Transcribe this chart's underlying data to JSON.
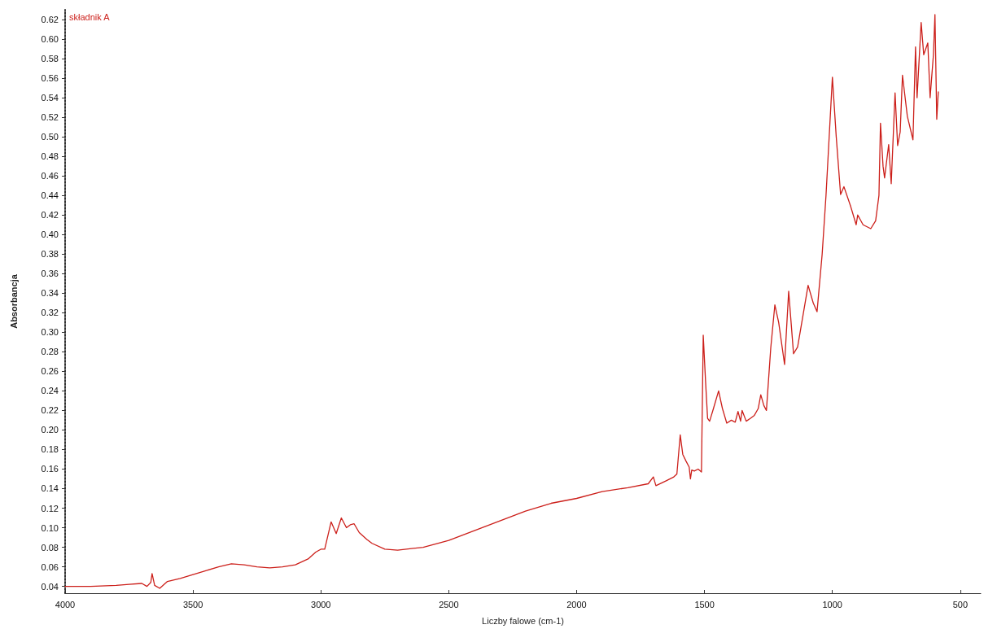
{
  "chart_data": {
    "type": "line",
    "xlabel": "Liczby falowe (cm-1)",
    "ylabel": "Absorbancja",
    "legend": "top left",
    "marker": "none",
    "line_style": "solid",
    "xlim": [
      4000,
      420
    ],
    "xticks": [
      4000,
      3500,
      3000,
      2500,
      2000,
      1500,
      1000,
      500
    ],
    "ylim": [
      0.033,
      0.63
    ],
    "yticks": [
      0.04,
      0.06,
      0.08,
      {
        "value": 0.1,
        "label": "0.10"
      },
      0.12,
      0.14,
      0.16,
      0.18,
      {
        "value": 0.2,
        "label": "0.20"
      },
      0.22,
      0.24,
      0.26,
      0.28,
      {
        "value": 0.3,
        "label": "0.30"
      },
      0.32,
      0.34,
      0.36,
      0.38,
      {
        "value": 0.4,
        "label": "0.40"
      },
      0.42,
      0.44,
      0.46,
      0.48,
      {
        "value": 0.5,
        "label": "0.50"
      },
      0.52,
      0.54,
      0.56,
      0.58,
      {
        "value": 0.6,
        "label": "0.60"
      },
      0.62
    ],
    "series": [
      {
        "name": "składnik A",
        "color": "#cc1f1a",
        "x": [
          4000,
          3900,
          3800,
          3750,
          3700,
          3680,
          3665,
          3660,
          3650,
          3630,
          3600,
          3550,
          3500,
          3450,
          3400,
          3350,
          3300,
          3250,
          3200,
          3150,
          3100,
          3050,
          3020,
          3000,
          2985,
          2960,
          2940,
          2920,
          2900,
          2885,
          2870,
          2850,
          2820,
          2800,
          2750,
          2700,
          2600,
          2500,
          2400,
          2300,
          2200,
          2100,
          2000,
          1900,
          1800,
          1720,
          1700,
          1690,
          1650,
          1620,
          1608,
          1595,
          1585,
          1572,
          1560,
          1555,
          1550,
          1540,
          1525,
          1512,
          1505,
          1496,
          1488,
          1480,
          1465,
          1445,
          1430,
          1413,
          1395,
          1380,
          1369,
          1359,
          1353,
          1337,
          1320,
          1305,
          1290,
          1280,
          1268,
          1258,
          1241,
          1225,
          1210,
          1187,
          1171,
          1152,
          1136,
          1110,
          1095,
          1075,
          1060,
          1040,
          1025,
          1000,
          985,
          968,
          955,
          930,
          907,
          901,
          880,
          850,
          831,
          818,
          812,
          802,
          796,
          780,
          770,
          755,
          745,
          735,
          726,
          707,
          685,
          675,
          669,
          653,
          643,
          627,
          618,
          605,
          599,
          592,
          586
        ],
        "values": [
          0.04,
          0.04,
          0.041,
          0.042,
          0.043,
          0.04,
          0.044,
          0.053,
          0.041,
          0.038,
          0.045,
          0.048,
          0.052,
          0.056,
          0.06,
          0.063,
          0.062,
          0.06,
          0.059,
          0.06,
          0.062,
          0.068,
          0.075,
          0.078,
          0.078,
          0.106,
          0.094,
          0.11,
          0.1,
          0.103,
          0.104,
          0.095,
          0.088,
          0.084,
          0.078,
          0.077,
          0.08,
          0.087,
          0.097,
          0.107,
          0.117,
          0.125,
          0.13,
          0.137,
          0.141,
          0.145,
          0.152,
          0.143,
          0.148,
          0.152,
          0.155,
          0.195,
          0.175,
          0.168,
          0.162,
          0.15,
          0.159,
          0.158,
          0.16,
          0.157,
          0.297,
          0.25,
          0.212,
          0.209,
          0.222,
          0.24,
          0.222,
          0.207,
          0.21,
          0.208,
          0.219,
          0.209,
          0.22,
          0.209,
          0.212,
          0.215,
          0.222,
          0.236,
          0.225,
          0.22,
          0.284,
          0.328,
          0.31,
          0.267,
          0.342,
          0.278,
          0.285,
          0.325,
          0.348,
          0.33,
          0.321,
          0.38,
          0.44,
          0.561,
          0.5,
          0.441,
          0.449,
          0.43,
          0.41,
          0.42,
          0.41,
          0.406,
          0.414,
          0.44,
          0.514,
          0.47,
          0.458,
          0.492,
          0.452,
          0.545,
          0.491,
          0.505,
          0.563,
          0.521,
          0.497,
          0.592,
          0.54,
          0.617,
          0.584,
          0.596,
          0.54,
          0.584,
          0.625,
          0.518,
          0.546
        ]
      }
    ]
  }
}
